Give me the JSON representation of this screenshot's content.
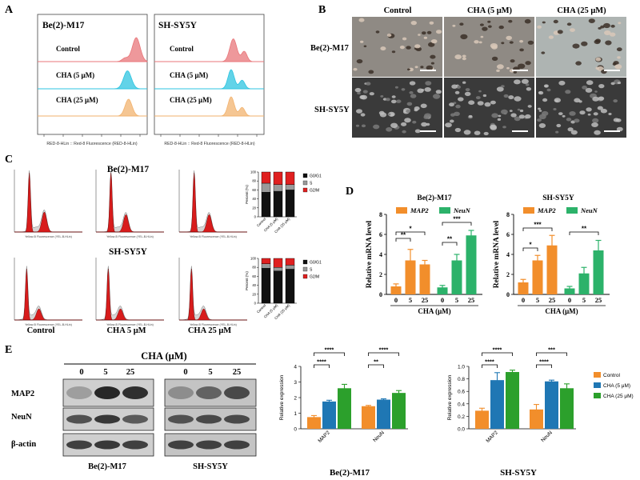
{
  "panel_labels": [
    "A",
    "B",
    "C",
    "D",
    "E"
  ],
  "colors": {
    "control": "#F28E2B",
    "cha5": "#1F77B4",
    "cha25": "#2CA02C",
    "hist_control": "#E8767A",
    "hist_cha5": "#2EC4E0",
    "hist_cha25": "#F2B36F",
    "map2": "#F28E2B",
    "neun": "#2CB26A",
    "cycle_g0g1": "#111111",
    "cycle_s": "#9A9A9A",
    "cycle_g2m": "#E02020"
  },
  "panel_a": {
    "charts": [
      {
        "title": "Be(2)-M17",
        "rows": [
          "Control",
          "CHA (5 μM)",
          "CHA (25 μM)"
        ],
        "xlabel": "RED-8-HLin :: Red-8 Fluorescence (RED-8-HLin)"
      },
      {
        "title": "SH-SY5Y",
        "rows": [
          "Control",
          "CHA (5 μM)",
          "CHA (25 μM)"
        ],
        "xlabel": "RED-8-HLin :: Red-8 Fluorescence (RED-8-HLin)"
      }
    ]
  },
  "panel_b": {
    "columns": [
      "Control",
      "CHA (5 μM)",
      "CHA (25 μM)"
    ],
    "rows": [
      "Be(2)-M17",
      "SH-SY5Y"
    ]
  },
  "panel_c": {
    "row_labels": [
      "Be(2)-M17",
      "SH-SY5Y"
    ],
    "col_labels": [
      "Control",
      "CHA 5 μM",
      "CHA 25 μM"
    ],
    "hist_xlabel": "Yellow-B Fluorescence (YEL-B-HLin)",
    "stack_ylabel": "Percent (%)",
    "stack_categories": [
      "Control",
      "CHA (5 μM)",
      "CHA (25 μM)"
    ],
    "stack_legend": [
      "G0/G1",
      "S",
      "G2/M"
    ],
    "stack_yticks": [
      "0",
      "20",
      "40",
      "60",
      "80",
      "100"
    ]
  },
  "panel_d": {
    "xlabel": "CHA (μM)",
    "ylabel": "Relative mRNA level",
    "legend": [
      "MAP2",
      "NeuN"
    ]
  },
  "panel_e": {
    "blot_title": "CHA (μM)",
    "doses": [
      "0",
      "5",
      "25"
    ],
    "proteins": [
      "MAP2",
      "NeuN",
      "β-actin"
    ],
    "cell_lines": [
      "Be(2)-M17",
      "SH-SY5Y"
    ],
    "ylabel": "Relative expression",
    "legend": [
      "Control",
      "CHA (5 μM)",
      "CHA (25 μM)"
    ]
  },
  "chart_data": [
    {
      "id": "C-Be2-stack",
      "type": "bar",
      "stacked": true,
      "categories": [
        "Control",
        "CHA (5 μM)",
        "CHA (25 μM)"
      ],
      "series": [
        {
          "name": "G0/G1",
          "values": [
            55,
            57,
            60
          ]
        },
        {
          "name": "S",
          "values": [
            20,
            15,
            12
          ]
        },
        {
          "name": "G2/M",
          "values": [
            25,
            28,
            28
          ]
        }
      ],
      "ylim": [
        0,
        100
      ]
    },
    {
      "id": "C-SH-stack",
      "type": "bar",
      "stacked": true,
      "categories": [
        "Control",
        "CHA (5 μM)",
        "CHA (25 μM)"
      ],
      "series": [
        {
          "name": "G0/G1",
          "values": [
            78,
            72,
            76
          ]
        },
        {
          "name": "S",
          "values": [
            10,
            8,
            9
          ]
        },
        {
          "name": "G2/M",
          "values": [
            12,
            20,
            15
          ]
        }
      ],
      "ylim": [
        0,
        100
      ]
    },
    {
      "id": "D-Be2",
      "type": "bar",
      "title": "Be(2)-M17",
      "categories": [
        "0",
        "5",
        "25",
        "0",
        "5",
        "25"
      ],
      "groups": [
        "MAP2",
        "NeuN"
      ],
      "values": [
        0.8,
        3.4,
        3.0,
        0.7,
        3.4,
        5.9
      ],
      "errors": [
        0.25,
        1.1,
        0.4,
        0.2,
        0.6,
        0.5
      ],
      "ylim": [
        0,
        8
      ],
      "yticks": [
        0,
        2,
        4,
        6,
        8
      ],
      "xlabel": "CHA (μM)",
      "ylabel": "Relative mRNA level",
      "sig": [
        [
          "0",
          "5",
          "**"
        ],
        [
          "0",
          "25",
          "*"
        ],
        [
          "0",
          "5",
          "**"
        ],
        [
          "0",
          "25",
          "***"
        ]
      ]
    },
    {
      "id": "D-SH",
      "type": "bar",
      "title": "SH-SY5Y",
      "categories": [
        "0",
        "5",
        "25",
        "0",
        "5",
        "25"
      ],
      "groups": [
        "MAP2",
        "NeuN"
      ],
      "values": [
        1.2,
        3.4,
        4.9,
        0.6,
        2.1,
        4.4
      ],
      "errors": [
        0.3,
        0.5,
        1.0,
        0.2,
        0.6,
        1.0
      ],
      "ylim": [
        0,
        8
      ],
      "yticks": [
        0,
        2,
        4,
        6,
        8
      ],
      "xlabel": "CHA (μM)",
      "ylabel": "Relative mRNA level",
      "sig": [
        [
          "0",
          "5",
          "*"
        ],
        [
          "0",
          "25",
          "***"
        ],
        [
          "0",
          "25",
          "**"
        ]
      ]
    },
    {
      "id": "E-Be2",
      "type": "bar",
      "title": "Be(2)-M17",
      "categories": [
        "MAP2",
        "NeuN"
      ],
      "series": [
        {
          "name": "Control",
          "values": [
            0.75,
            1.45
          ],
          "errors": [
            0.1,
            0.05
          ]
        },
        {
          "name": "CHA (5 μM)",
          "values": [
            1.75,
            1.87
          ],
          "errors": [
            0.08,
            0.05
          ]
        },
        {
          "name": "CHA (25 μM)",
          "values": [
            2.6,
            2.3
          ],
          "errors": [
            0.25,
            0.15
          ]
        }
      ],
      "ylim": [
        0,
        4
      ],
      "yticks": [
        0,
        1,
        2,
        3,
        4
      ],
      "ylabel": "Relative expression",
      "sig": [
        {
          "cat": "MAP2",
          "pair": [
            "Control",
            "CHA (25 μM)"
          ],
          "label": "****"
        },
        {
          "cat": "MAP2",
          "pair": [
            "Control",
            "CHA (5 μM)"
          ],
          "label": "****"
        },
        {
          "cat": "NeuN",
          "pair": [
            "Control",
            "CHA (25 μM)"
          ],
          "label": "****"
        },
        {
          "cat": "NeuN",
          "pair": [
            "Control",
            "CHA (5 μM)"
          ],
          "label": "**"
        }
      ]
    },
    {
      "id": "E-SH",
      "type": "bar",
      "title": "SH-SY5Y",
      "categories": [
        "MAP2",
        "NeuN"
      ],
      "series": [
        {
          "name": "Control",
          "values": [
            0.29,
            0.31
          ],
          "errors": [
            0.04,
            0.08
          ]
        },
        {
          "name": "CHA (5 μM)",
          "values": [
            0.78,
            0.76
          ],
          "errors": [
            0.12,
            0.02
          ]
        },
        {
          "name": "CHA (25 μM)",
          "values": [
            0.91,
            0.65
          ],
          "errors": [
            0.03,
            0.07
          ]
        }
      ],
      "ylim": [
        0,
        1.0
      ],
      "yticks": [
        0,
        0.2,
        0.4,
        0.6,
        0.8,
        1.0
      ],
      "ylabel": "Relative expression",
      "legend_position": "right",
      "sig": [
        {
          "cat": "MAP2",
          "pair": [
            "Control",
            "CHA (25 μM)"
          ],
          "label": "****"
        },
        {
          "cat": "MAP2",
          "pair": [
            "Control",
            "CHA (5 μM)"
          ],
          "label": "****"
        },
        {
          "cat": "NeuN",
          "pair": [
            "Control",
            "CHA (25 μM)"
          ],
          "label": "***"
        },
        {
          "cat": "NeuN",
          "pair": [
            "Control",
            "CHA (5 μM)"
          ],
          "label": "****"
        }
      ]
    }
  ]
}
